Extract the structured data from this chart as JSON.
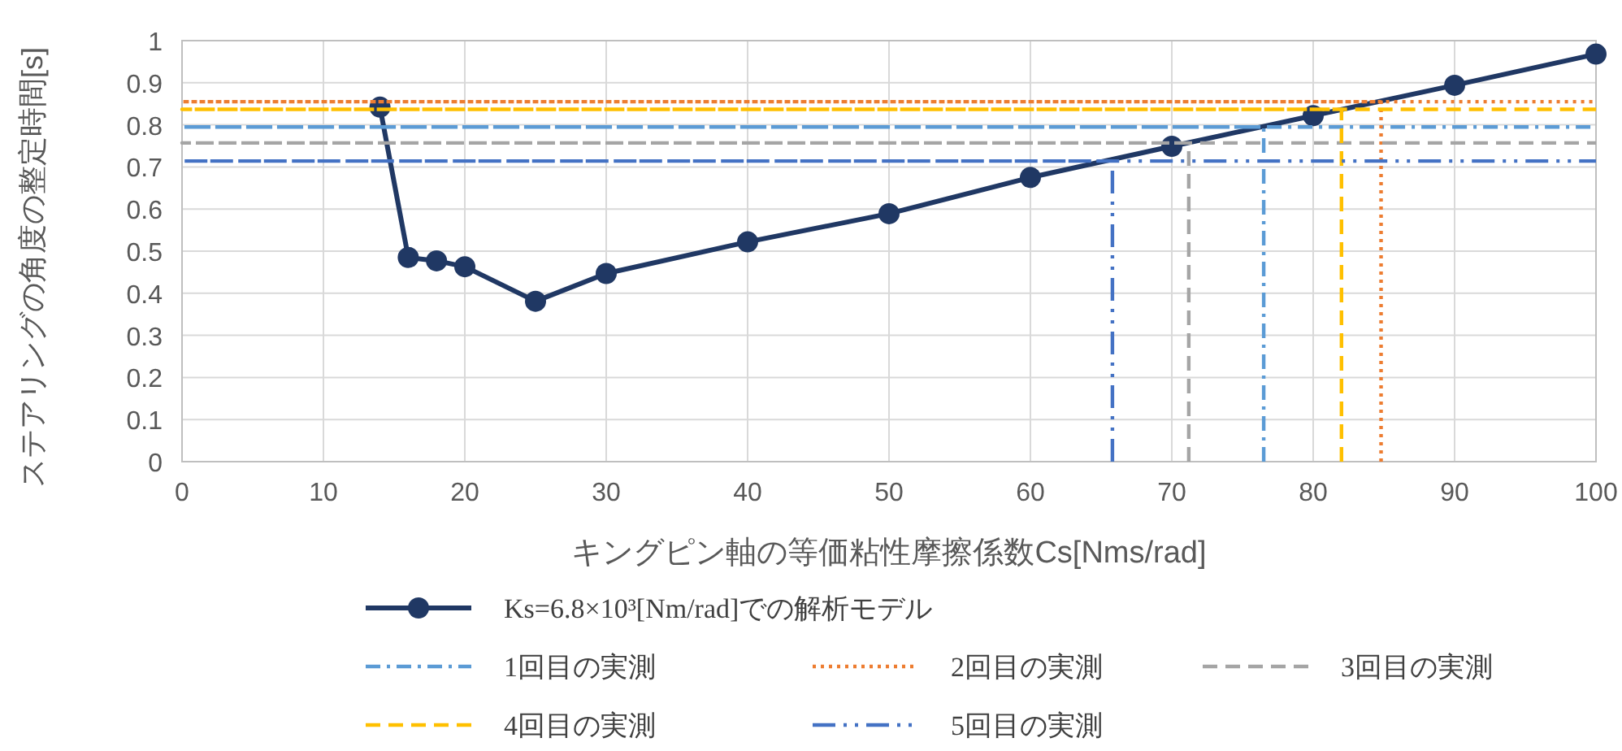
{
  "chart_data": {
    "type": "line",
    "xlabel": "キングピン軸の等価粘性摩擦係数Cs[Nms/rad]",
    "ylabel": "ステアリングの角度の整定時間[s]",
    "xlim": [
      0,
      100
    ],
    "xticks": [
      0,
      10,
      20,
      30,
      40,
      50,
      60,
      70,
      80,
      90,
      100
    ],
    "ylim": [
      0,
      1
    ],
    "yticks": [
      0,
      0.1,
      0.2,
      0.3,
      0.4,
      0.5,
      0.6,
      0.7,
      0.8,
      0.9,
      1
    ],
    "grid": true,
    "legend": "bottom",
    "series": [
      {
        "name": "Ks=6.8×10³[Nm/rad]での解析モデル",
        "color": "#203864",
        "marker": "circle",
        "line_style": "solid",
        "x": [
          14,
          16,
          18,
          20,
          25,
          30,
          40,
          50,
          60,
          70,
          80,
          90,
          100
        ],
        "values": [
          0.842,
          0.485,
          0.477,
          0.463,
          0.381,
          0.447,
          0.522,
          0.589,
          0.675,
          0.749,
          0.822,
          0.894,
          0.968
        ]
      },
      {
        "name": "1回目の実測",
        "color": "#5b9bd5",
        "marker": "none",
        "line_style": "dashdot",
        "x": [
          76.5,
          76.5,
          0,
          100
        ],
        "values": [
          0,
          0.795,
          0.795,
          0.795
        ]
      },
      {
        "name": "2回目の実測",
        "color": "#ed7d31",
        "marker": "none",
        "line_style": "dotted",
        "x": [
          84.8,
          84.8,
          0,
          100
        ],
        "values": [
          0,
          0.855,
          0.855,
          0.855
        ]
      },
      {
        "name": "3回目の実測",
        "color": "#a5a5a5",
        "marker": "none",
        "line_style": "dashed",
        "x": [
          71.2,
          71.2,
          0,
          100
        ],
        "values": [
          0,
          0.757,
          0.757,
          0.757
        ]
      },
      {
        "name": "4回目の実測",
        "color": "#ffc000",
        "marker": "none",
        "line_style": "dashed",
        "x": [
          82,
          82,
          0,
          100
        ],
        "values": [
          0,
          0.837,
          0.837,
          0.837
        ]
      },
      {
        "name": "5回目の実測",
        "color": "#4472c4",
        "marker": "none",
        "line_style": "dashdotdot",
        "x": [
          65.8,
          65.8,
          0,
          100
        ],
        "values": [
          0,
          0.714,
          0.714,
          0.714
        ]
      }
    ]
  }
}
